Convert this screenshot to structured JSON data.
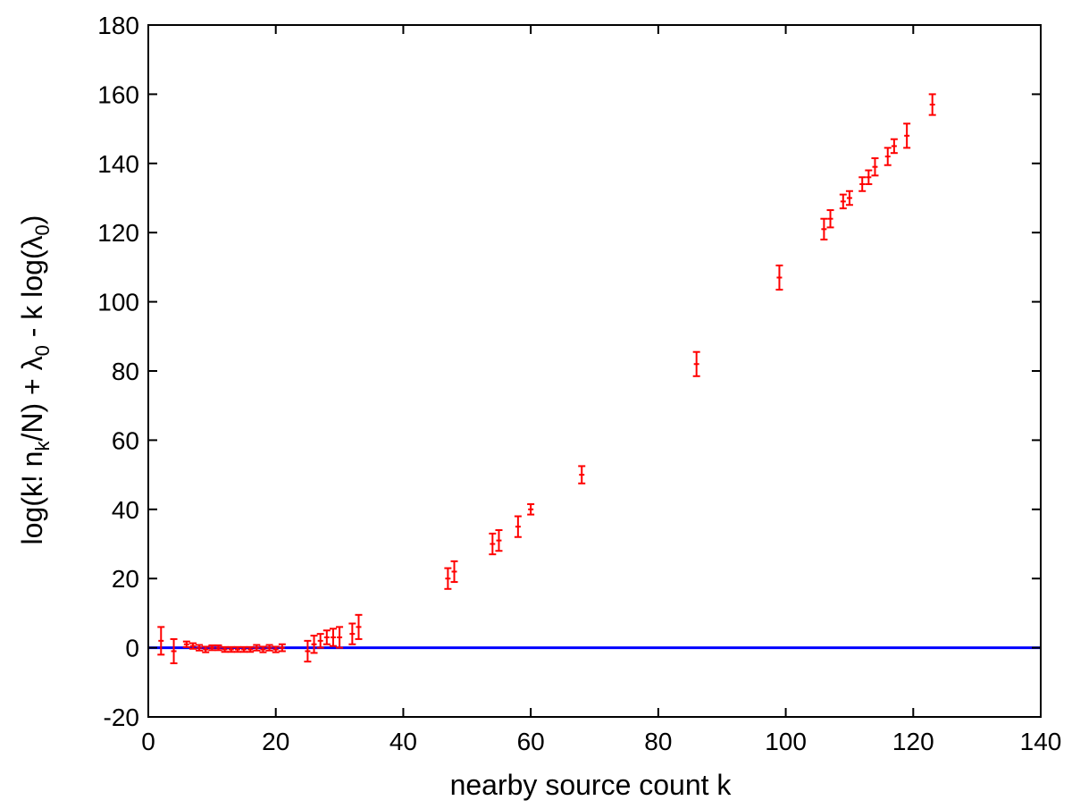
{
  "chart_data": {
    "type": "scatter",
    "title": "",
    "xlabel": "nearby source count k",
    "ylabel_parts": {
      "p1": "log(k! n",
      "sub1": "k",
      "p2": "/N) + λ",
      "sub2": "0",
      "p3": " - k log(λ",
      "sub3": "0",
      "p4": ")"
    },
    "xlim": [
      0,
      140
    ],
    "ylim": [
      -20,
      180
    ],
    "xticks": [
      0,
      20,
      40,
      60,
      80,
      100,
      120,
      140
    ],
    "yticks": [
      -20,
      0,
      20,
      40,
      60,
      80,
      100,
      120,
      140,
      160,
      180
    ],
    "xtick_labels": [
      "0",
      "20",
      "40",
      "60",
      "80",
      "100",
      "120",
      "140"
    ],
    "ytick_labels": [
      "-20",
      "0",
      "20",
      "40",
      "60",
      "80",
      "100",
      "120",
      "140",
      "160",
      "180"
    ],
    "grid": false,
    "reference_line": {
      "y": 0,
      "color": "#0000ff"
    },
    "series": [
      {
        "marker_color": "#ff0000",
        "points": [
          {
            "x": 2,
            "y": 2,
            "err": 4
          },
          {
            "x": 4,
            "y": -1,
            "err": 3.5
          },
          {
            "x": 6,
            "y": 1,
            "err": 0.8
          },
          {
            "x": 7,
            "y": 0.5,
            "err": 0.8
          },
          {
            "x": 8,
            "y": 0,
            "err": 0.8
          },
          {
            "x": 9,
            "y": -0.5,
            "err": 0.8
          },
          {
            "x": 10,
            "y": 0,
            "err": 0.7
          },
          {
            "x": 11,
            "y": 0,
            "err": 0.7
          },
          {
            "x": 12,
            "y": -0.5,
            "err": 0.7
          },
          {
            "x": 13,
            "y": -0.5,
            "err": 0.7
          },
          {
            "x": 14,
            "y": -0.5,
            "err": 0.7
          },
          {
            "x": 15,
            "y": -0.5,
            "err": 0.7
          },
          {
            "x": 16,
            "y": -0.5,
            "err": 0.7
          },
          {
            "x": 17,
            "y": 0,
            "err": 0.8
          },
          {
            "x": 18,
            "y": -0.5,
            "err": 0.8
          },
          {
            "x": 19,
            "y": 0,
            "err": 0.8
          },
          {
            "x": 20,
            "y": -0.5,
            "err": 0.8
          },
          {
            "x": 21,
            "y": 0,
            "err": 1
          },
          {
            "x": 25,
            "y": -1,
            "err": 3
          },
          {
            "x": 26,
            "y": 1,
            "err": 2.5
          },
          {
            "x": 27,
            "y": 2,
            "err": 2
          },
          {
            "x": 28,
            "y": 3,
            "err": 2
          },
          {
            "x": 29,
            "y": 3,
            "err": 2.5
          },
          {
            "x": 30,
            "y": 3,
            "err": 3
          },
          {
            "x": 32,
            "y": 4,
            "err": 3
          },
          {
            "x": 33,
            "y": 6,
            "err": 3.5
          },
          {
            "x": 47,
            "y": 20,
            "err": 3
          },
          {
            "x": 48,
            "y": 22,
            "err": 3
          },
          {
            "x": 54,
            "y": 30,
            "err": 3
          },
          {
            "x": 55,
            "y": 31,
            "err": 3
          },
          {
            "x": 58,
            "y": 35,
            "err": 3
          },
          {
            "x": 60,
            "y": 40,
            "err": 1.5
          },
          {
            "x": 68,
            "y": 50,
            "err": 2.5
          },
          {
            "x": 86,
            "y": 82,
            "err": 3.5
          },
          {
            "x": 99,
            "y": 107,
            "err": 3.5
          },
          {
            "x": 106,
            "y": 121,
            "err": 3
          },
          {
            "x": 107,
            "y": 124,
            "err": 2.5
          },
          {
            "x": 109,
            "y": 129,
            "err": 2
          },
          {
            "x": 110,
            "y": 130,
            "err": 2
          },
          {
            "x": 112,
            "y": 134,
            "err": 2
          },
          {
            "x": 113,
            "y": 136,
            "err": 2
          },
          {
            "x": 114,
            "y": 139,
            "err": 2.5
          },
          {
            "x": 116,
            "y": 142,
            "err": 2.5
          },
          {
            "x": 117,
            "y": 145,
            "err": 2
          },
          {
            "x": 119,
            "y": 148,
            "err": 3.5
          },
          {
            "x": 123,
            "y": 157,
            "err": 3
          }
        ]
      }
    ]
  }
}
